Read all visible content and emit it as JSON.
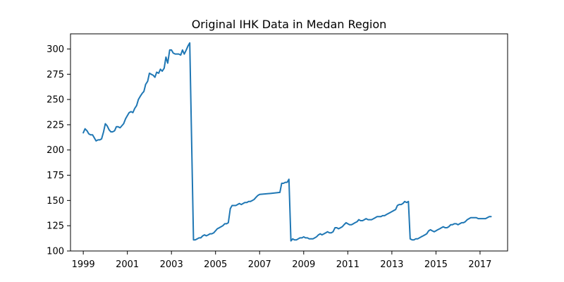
{
  "chart_data": {
    "type": "line",
    "title": "Original IHK Data in Medan Region",
    "xlabel": "",
    "ylabel": "",
    "xlim": [
      1998.42,
      2018.25
    ],
    "ylim": [
      100,
      315
    ],
    "x_ticks": [
      1999,
      2001,
      2003,
      2005,
      2007,
      2009,
      2011,
      2013,
      2015,
      2017
    ],
    "x_tick_labels": [
      "1999",
      "2001",
      "2003",
      "2005",
      "2007",
      "2009",
      "2011",
      "2013",
      "2015",
      "2017"
    ],
    "y_ticks": [
      100,
      125,
      150,
      175,
      200,
      225,
      250,
      275,
      300
    ],
    "y_tick_labels": [
      "100",
      "125",
      "150",
      "175",
      "200",
      "225",
      "250",
      "275",
      "300"
    ],
    "grid": false,
    "line_color": "#1f77b4",
    "series": [
      {
        "points": [
          [
            1999.0,
            217
          ],
          [
            1999.08,
            221
          ],
          [
            1999.17,
            219
          ],
          [
            1999.25,
            216
          ],
          [
            1999.33,
            215
          ],
          [
            1999.42,
            215
          ],
          [
            1999.5,
            212
          ],
          [
            1999.58,
            209
          ],
          [
            1999.67,
            210
          ],
          [
            1999.75,
            210
          ],
          [
            1999.83,
            211
          ],
          [
            1999.92,
            218
          ],
          [
            2000.0,
            226
          ],
          [
            2000.08,
            224
          ],
          [
            2000.17,
            220
          ],
          [
            2000.25,
            218
          ],
          [
            2000.33,
            218
          ],
          [
            2000.42,
            219
          ],
          [
            2000.5,
            223
          ],
          [
            2000.58,
            223
          ],
          [
            2000.67,
            222
          ],
          [
            2000.75,
            224
          ],
          [
            2000.83,
            226
          ],
          [
            2000.92,
            231
          ],
          [
            2001.0,
            234
          ],
          [
            2001.08,
            237
          ],
          [
            2001.17,
            238
          ],
          [
            2001.25,
            237
          ],
          [
            2001.33,
            241
          ],
          [
            2001.42,
            244
          ],
          [
            2001.5,
            250
          ],
          [
            2001.58,
            253
          ],
          [
            2001.67,
            256
          ],
          [
            2001.75,
            258
          ],
          [
            2001.83,
            265
          ],
          [
            2001.92,
            268
          ],
          [
            2002.0,
            276
          ],
          [
            2002.08,
            275
          ],
          [
            2002.17,
            274
          ],
          [
            2002.25,
            272
          ],
          [
            2002.33,
            277
          ],
          [
            2002.42,
            276
          ],
          [
            2002.5,
            280
          ],
          [
            2002.58,
            278
          ],
          [
            2002.67,
            281
          ],
          [
            2002.75,
            292
          ],
          [
            2002.83,
            286
          ],
          [
            2002.92,
            299
          ],
          [
            2003.0,
            299
          ],
          [
            2003.08,
            296
          ],
          [
            2003.17,
            295
          ],
          [
            2003.25,
            295
          ],
          [
            2003.33,
            295
          ],
          [
            2003.42,
            294
          ],
          [
            2003.5,
            299
          ],
          [
            2003.58,
            295
          ],
          [
            2003.67,
            299
          ],
          [
            2003.75,
            303
          ],
          [
            2003.83,
            306
          ],
          [
            2004.0,
            111
          ],
          [
            2004.08,
            111
          ],
          [
            2004.17,
            112
          ],
          [
            2004.25,
            113
          ],
          [
            2004.33,
            113
          ],
          [
            2004.42,
            115
          ],
          [
            2004.5,
            116
          ],
          [
            2004.58,
            115
          ],
          [
            2004.67,
            116
          ],
          [
            2004.75,
            117
          ],
          [
            2004.83,
            117
          ],
          [
            2004.92,
            118
          ],
          [
            2005.0,
            120
          ],
          [
            2005.08,
            122
          ],
          [
            2005.17,
            123
          ],
          [
            2005.25,
            124
          ],
          [
            2005.33,
            125
          ],
          [
            2005.42,
            127
          ],
          [
            2005.5,
            127
          ],
          [
            2005.58,
            128
          ],
          [
            2005.67,
            142
          ],
          [
            2005.75,
            145
          ],
          [
            2005.83,
            145
          ],
          [
            2005.92,
            145
          ],
          [
            2006.0,
            146
          ],
          [
            2006.08,
            147
          ],
          [
            2006.17,
            146
          ],
          [
            2006.25,
            147
          ],
          [
            2006.33,
            148
          ],
          [
            2006.42,
            148
          ],
          [
            2006.5,
            149
          ],
          [
            2006.58,
            149
          ],
          [
            2006.67,
            150
          ],
          [
            2006.75,
            151
          ],
          [
            2006.83,
            153
          ],
          [
            2006.92,
            155
          ],
          [
            2007.0,
            156
          ],
          [
            2007.5,
            157
          ],
          [
            2007.92,
            158
          ],
          [
            2008.0,
            167
          ],
          [
            2008.08,
            167
          ],
          [
            2008.17,
            168
          ],
          [
            2008.25,
            168
          ],
          [
            2008.33,
            171
          ],
          [
            2008.42,
            110
          ],
          [
            2008.5,
            112
          ],
          [
            2008.58,
            111
          ],
          [
            2008.67,
            111
          ],
          [
            2008.75,
            112
          ],
          [
            2008.83,
            113
          ],
          [
            2008.92,
            113
          ],
          [
            2009.0,
            114
          ],
          [
            2009.08,
            113
          ],
          [
            2009.17,
            113
          ],
          [
            2009.25,
            112
          ],
          [
            2009.33,
            112
          ],
          [
            2009.42,
            112
          ],
          [
            2009.5,
            113
          ],
          [
            2009.58,
            114
          ],
          [
            2009.67,
            116
          ],
          [
            2009.75,
            117
          ],
          [
            2009.83,
            116
          ],
          [
            2009.92,
            117
          ],
          [
            2010.0,
            118
          ],
          [
            2010.08,
            119
          ],
          [
            2010.17,
            118
          ],
          [
            2010.25,
            118
          ],
          [
            2010.33,
            119
          ],
          [
            2010.42,
            123
          ],
          [
            2010.5,
            123
          ],
          [
            2010.58,
            122
          ],
          [
            2010.67,
            123
          ],
          [
            2010.75,
            124
          ],
          [
            2010.83,
            126
          ],
          [
            2010.92,
            128
          ],
          [
            2011.0,
            127
          ],
          [
            2011.08,
            126
          ],
          [
            2011.17,
            126
          ],
          [
            2011.25,
            127
          ],
          [
            2011.33,
            128
          ],
          [
            2011.42,
            129
          ],
          [
            2011.5,
            131
          ],
          [
            2011.58,
            130
          ],
          [
            2011.67,
            130
          ],
          [
            2011.75,
            131
          ],
          [
            2011.83,
            132
          ],
          [
            2011.92,
            131
          ],
          [
            2012.0,
            131
          ],
          [
            2012.08,
            131
          ],
          [
            2012.17,
            132
          ],
          [
            2012.25,
            133
          ],
          [
            2012.33,
            134
          ],
          [
            2012.42,
            134
          ],
          [
            2012.5,
            134
          ],
          [
            2012.58,
            135
          ],
          [
            2012.67,
            135
          ],
          [
            2012.75,
            136
          ],
          [
            2012.83,
            137
          ],
          [
            2012.92,
            138
          ],
          [
            2013.0,
            139
          ],
          [
            2013.08,
            140
          ],
          [
            2013.17,
            141
          ],
          [
            2013.25,
            145
          ],
          [
            2013.33,
            146
          ],
          [
            2013.42,
            146
          ],
          [
            2013.5,
            147
          ],
          [
            2013.58,
            149
          ],
          [
            2013.67,
            148
          ],
          [
            2013.75,
            149
          ],
          [
            2013.83,
            112
          ],
          [
            2013.92,
            111
          ],
          [
            2014.0,
            111
          ],
          [
            2014.08,
            112
          ],
          [
            2014.17,
            112
          ],
          [
            2014.25,
            113
          ],
          [
            2014.33,
            114
          ],
          [
            2014.42,
            115
          ],
          [
            2014.5,
            116
          ],
          [
            2014.58,
            117
          ],
          [
            2014.67,
            120
          ],
          [
            2014.75,
            121
          ],
          [
            2014.83,
            120
          ],
          [
            2014.92,
            119
          ],
          [
            2015.0,
            120
          ],
          [
            2015.08,
            121
          ],
          [
            2015.17,
            122
          ],
          [
            2015.25,
            123
          ],
          [
            2015.33,
            124
          ],
          [
            2015.42,
            123
          ],
          [
            2015.5,
            123
          ],
          [
            2015.58,
            124
          ],
          [
            2015.67,
            126
          ],
          [
            2015.75,
            126
          ],
          [
            2015.83,
            127
          ],
          [
            2015.92,
            127
          ],
          [
            2016.0,
            126
          ],
          [
            2016.08,
            127
          ],
          [
            2016.17,
            128
          ],
          [
            2016.25,
            128
          ],
          [
            2016.33,
            129
          ],
          [
            2016.42,
            131
          ],
          [
            2016.5,
            132
          ],
          [
            2016.58,
            133
          ],
          [
            2016.67,
            133
          ],
          [
            2016.75,
            133
          ],
          [
            2016.83,
            133
          ],
          [
            2016.92,
            132
          ],
          [
            2017.0,
            132
          ],
          [
            2017.08,
            132
          ],
          [
            2017.17,
            132
          ],
          [
            2017.25,
            132
          ],
          [
            2017.33,
            133
          ],
          [
            2017.42,
            134
          ],
          [
            2017.5,
            134
          ]
        ]
      }
    ]
  }
}
